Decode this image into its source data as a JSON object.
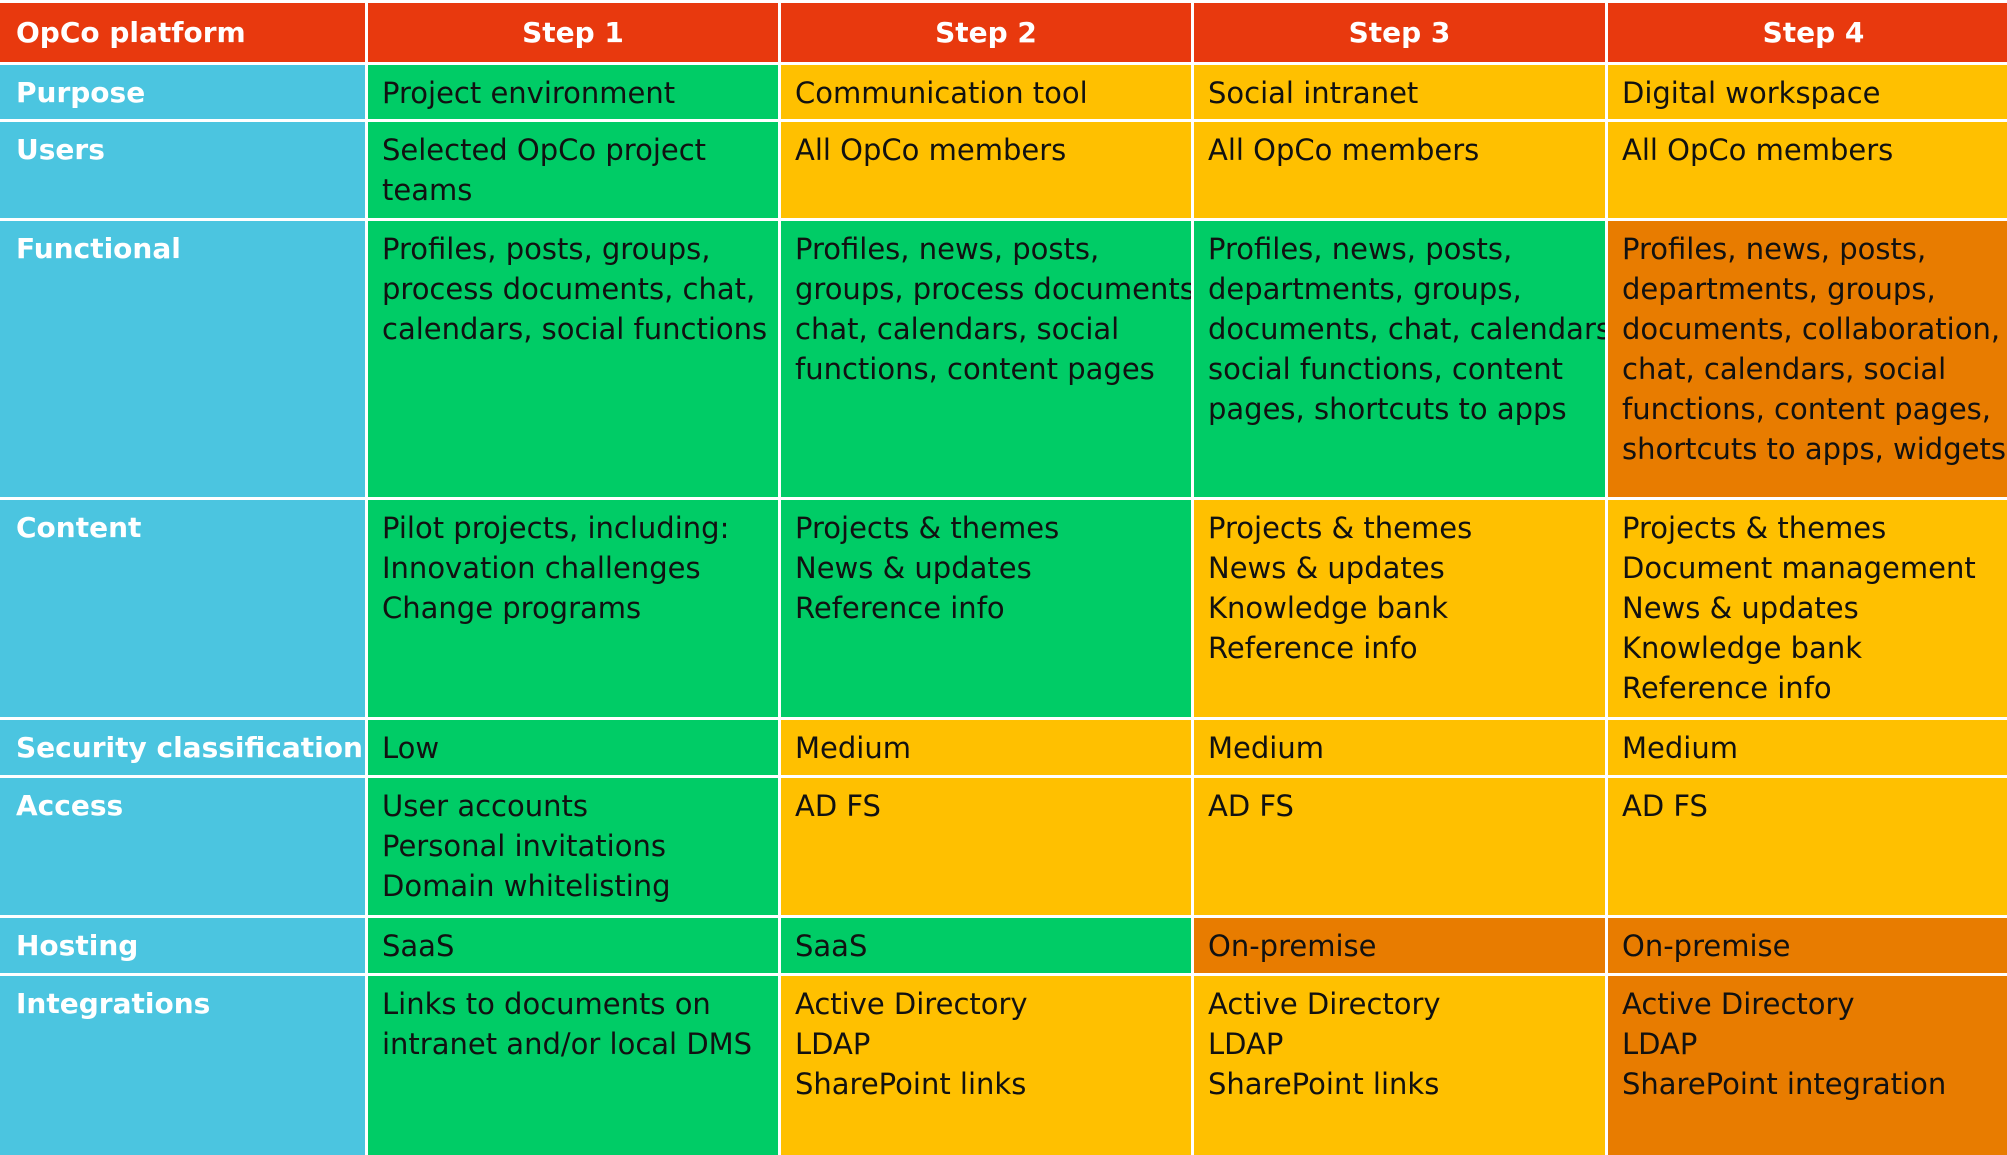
{
  "colors": {
    "header": "#e8390e",
    "label": "#4bc5e0",
    "green": "#00cc66",
    "yellow": "#ffc000",
    "orange": "#e87c00"
  },
  "header": [
    "OpCo platform",
    "Step 1",
    "Step 2",
    "Step 3",
    "Step 4"
  ],
  "rows": [
    {
      "label": "Purpose",
      "cells": [
        {
          "color": "green",
          "lines": [
            "Project environment"
          ]
        },
        {
          "color": "yellow",
          "lines": [
            "Communication tool"
          ]
        },
        {
          "color": "yellow",
          "lines": [
            "Social intranet"
          ]
        },
        {
          "color": "yellow",
          "lines": [
            "Digital workspace"
          ]
        }
      ]
    },
    {
      "label": "Users",
      "cells": [
        {
          "color": "green",
          "lines": [
            "Selected OpCo project",
            "teams"
          ]
        },
        {
          "color": "yellow",
          "lines": [
            "All OpCo members"
          ]
        },
        {
          "color": "yellow",
          "lines": [
            "All OpCo members"
          ]
        },
        {
          "color": "yellow",
          "lines": [
            "All OpCo members"
          ]
        }
      ]
    },
    {
      "label": "Functional",
      "cells": [
        {
          "color": "green",
          "lines": [
            "Profiles, posts, groups,",
            "process documents, chat,",
            "calendars, social functions"
          ]
        },
        {
          "color": "green",
          "lines": [
            "Profiles, news, posts,",
            "groups, process documents,",
            "chat, calendars, social",
            "functions, content pages"
          ]
        },
        {
          "color": "green",
          "lines": [
            "Profiles, news, posts,",
            "departments, groups,",
            "documents, chat, calendars,",
            "social functions, content",
            "pages, shortcuts to apps"
          ]
        },
        {
          "color": "orange",
          "lines": [
            "Profiles, news, posts,",
            "departments, groups,",
            "documents, collaboration,",
            "chat, calendars, social",
            "functions, content pages,",
            "shortcuts to apps, widgets"
          ]
        }
      ]
    },
    {
      "label": "Content",
      "cells": [
        {
          "color": "green",
          "lines": [
            "Pilot projects, including:",
            "Innovation challenges",
            "Change programs"
          ]
        },
        {
          "color": "green",
          "lines": [
            "Projects & themes",
            "News & updates",
            "Reference info"
          ]
        },
        {
          "color": "yellow",
          "lines": [
            "Projects & themes",
            "News & updates",
            "Knowledge bank",
            "Reference info"
          ]
        },
        {
          "color": "yellow",
          "lines": [
            "Projects & themes",
            "Document management",
            "News & updates",
            "Knowledge bank",
            "Reference info"
          ]
        }
      ]
    },
    {
      "label": "Security classification",
      "cells": [
        {
          "color": "green",
          "lines": [
            "Low"
          ]
        },
        {
          "color": "yellow",
          "lines": [
            "Medium"
          ]
        },
        {
          "color": "yellow",
          "lines": [
            "Medium"
          ]
        },
        {
          "color": "yellow",
          "lines": [
            "Medium"
          ]
        }
      ]
    },
    {
      "label": "Access",
      "cells": [
        {
          "color": "green",
          "lines": [
            "User accounts",
            "Personal invitations",
            "Domain whitelisting"
          ]
        },
        {
          "color": "yellow",
          "lines": [
            "AD FS"
          ]
        },
        {
          "color": "yellow",
          "lines": [
            "AD FS"
          ]
        },
        {
          "color": "yellow",
          "lines": [
            "AD FS"
          ]
        }
      ]
    },
    {
      "label": "Hosting",
      "cells": [
        {
          "color": "green",
          "lines": [
            "SaaS"
          ]
        },
        {
          "color": "green",
          "lines": [
            "SaaS"
          ]
        },
        {
          "color": "orange",
          "lines": [
            "On-premise"
          ]
        },
        {
          "color": "orange",
          "lines": [
            "On-premise"
          ]
        }
      ]
    },
    {
      "label": "Integrations",
      "cells": [
        {
          "color": "green",
          "lines": [
            "Links to documents on",
            "intranet and/or local DMS"
          ]
        },
        {
          "color": "yellow",
          "lines": [
            "Active Directory",
            "LDAP",
            "SharePoint links"
          ]
        },
        {
          "color": "yellow",
          "lines": [
            "Active Directory",
            "LDAP",
            "SharePoint links"
          ]
        },
        {
          "color": "orange",
          "lines": [
            "Active Directory",
            "LDAP",
            "SharePoint integration"
          ]
        }
      ]
    }
  ]
}
